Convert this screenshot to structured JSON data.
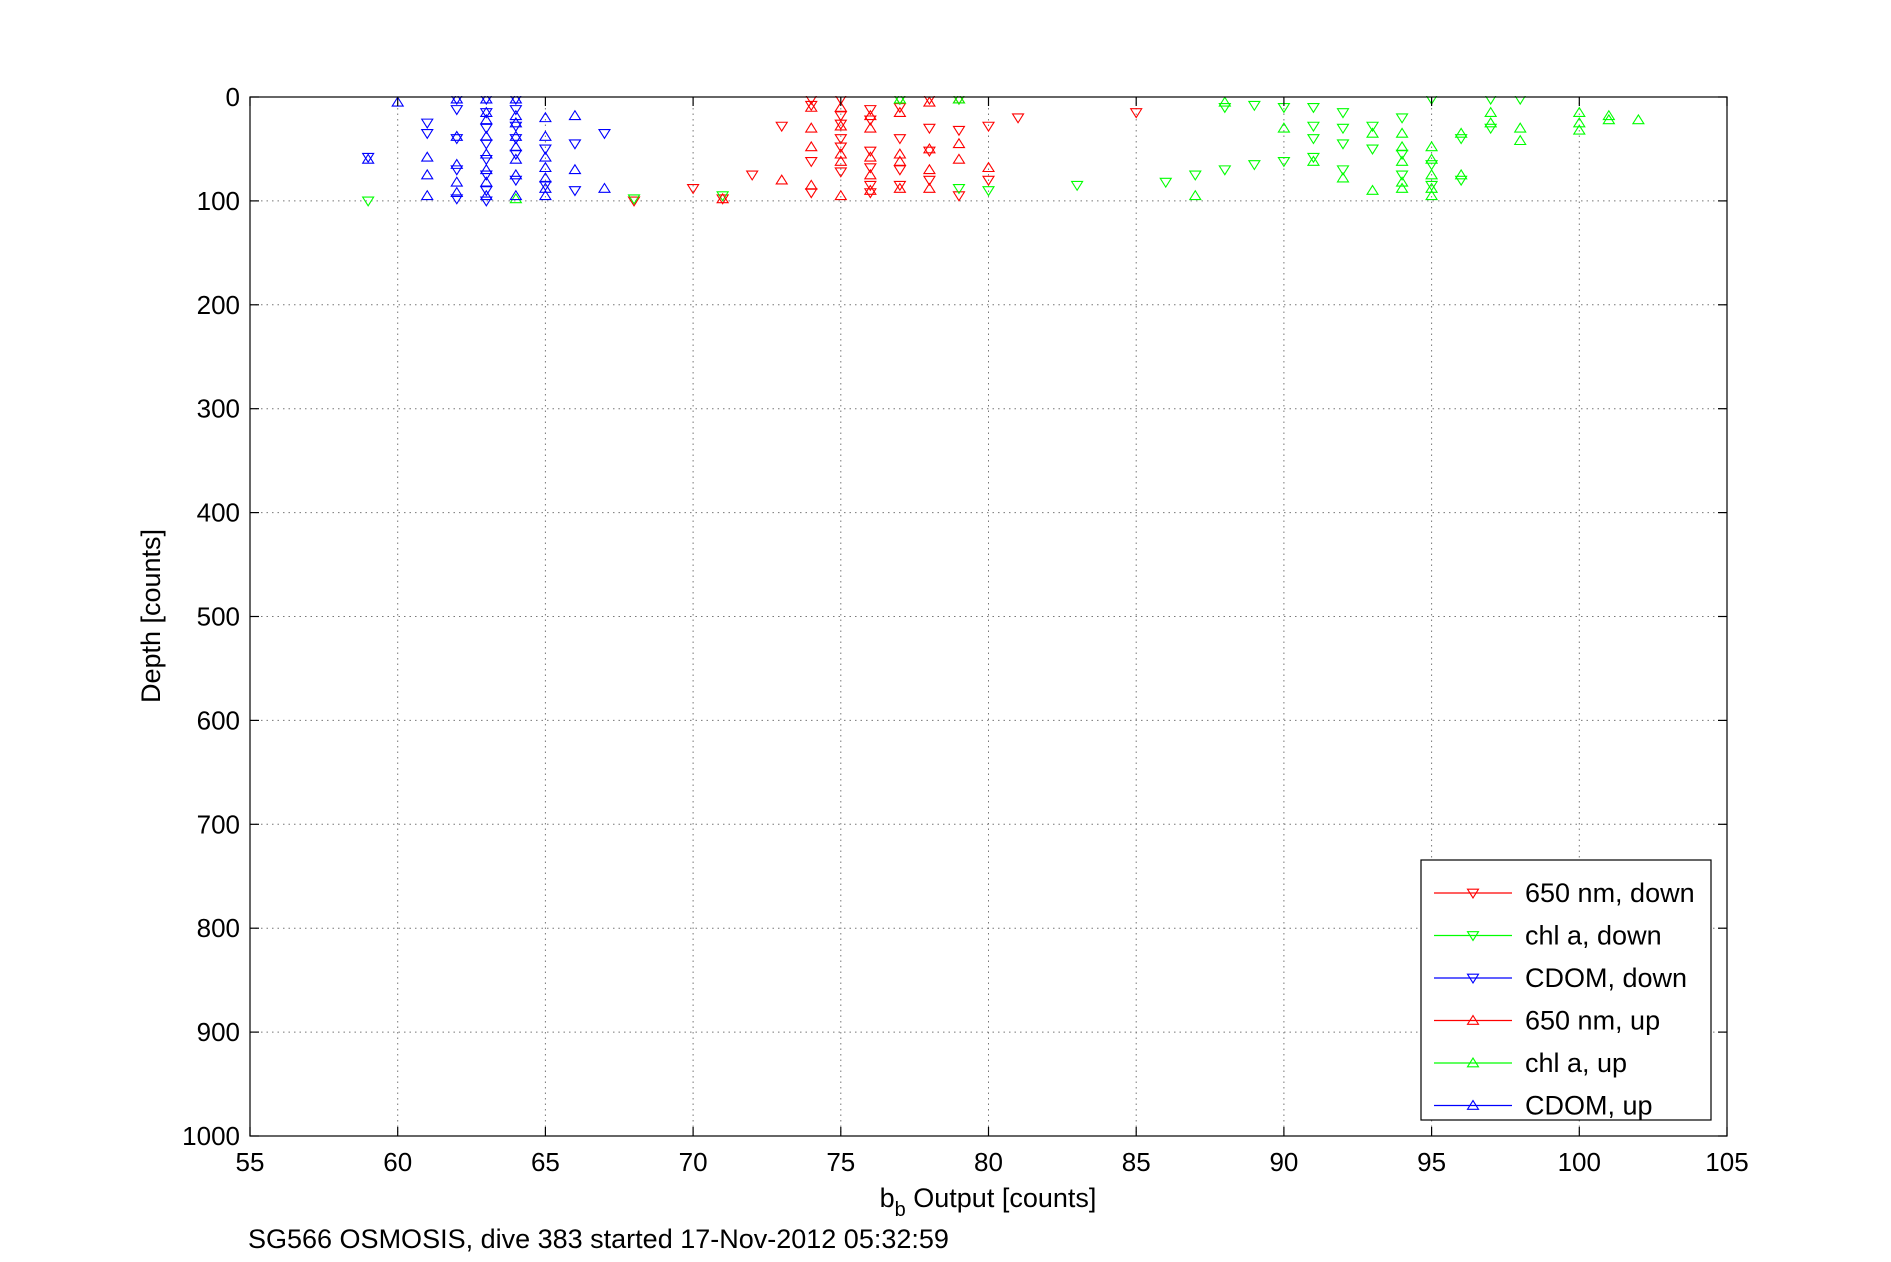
{
  "figure_caption": "SG566 OSMOSIS, dive 383 started 17-Nov-2012 05:32:59",
  "chart_data": {
    "type": "scatter",
    "title": "",
    "xlabel_main": "b",
    "xlabel_sub": "b",
    "xlabel_rest": " Output [counts]",
    "ylabel": "Depth [counts]",
    "xlim": [
      55,
      105
    ],
    "ylim": [
      0,
      1000
    ],
    "y_reversed": true,
    "grid": true,
    "legend_position": "bottom-right",
    "x_ticks": [
      "55",
      "60",
      "65",
      "70",
      "75",
      "80",
      "85",
      "90",
      "95",
      "100",
      "105"
    ],
    "y_ticks": [
      "0",
      "100",
      "200",
      "300",
      "400",
      "500",
      "600",
      "700",
      "800",
      "900",
      "1000"
    ],
    "series": [
      {
        "name": "650 nm, down",
        "color": "#ff0000",
        "marker": "triangle-down",
        "points": [
          [
            68,
            100
          ],
          [
            70,
            88
          ],
          [
            71,
            98
          ],
          [
            72,
            75
          ],
          [
            73,
            28
          ],
          [
            74,
            2
          ],
          [
            74,
            8
          ],
          [
            74,
            62
          ],
          [
            74,
            92
          ],
          [
            75,
            2
          ],
          [
            75,
            18
          ],
          [
            75,
            26
          ],
          [
            75,
            40
          ],
          [
            75,
            48
          ],
          [
            75,
            72
          ],
          [
            76,
            12
          ],
          [
            76,
            22
          ],
          [
            76,
            52
          ],
          [
            76,
            68
          ],
          [
            76,
            85
          ],
          [
            76,
            92
          ],
          [
            77,
            2
          ],
          [
            77,
            10
          ],
          [
            77,
            40
          ],
          [
            77,
            70
          ],
          [
            77,
            85
          ],
          [
            78,
            2
          ],
          [
            78,
            30
          ],
          [
            78,
            52
          ],
          [
            78,
            80
          ],
          [
            79,
            2
          ],
          [
            79,
            32
          ],
          [
            79,
            95
          ],
          [
            80,
            28
          ],
          [
            80,
            80
          ],
          [
            81,
            20
          ],
          [
            85,
            15
          ]
        ]
      },
      {
        "name": "chl a, down",
        "color": "#00ff00",
        "marker": "triangle-down",
        "points": [
          [
            59,
            100
          ],
          [
            68,
            98
          ],
          [
            71,
            95
          ],
          [
            77,
            2
          ],
          [
            79,
            2
          ],
          [
            79,
            88
          ],
          [
            80,
            90
          ],
          [
            83,
            85
          ],
          [
            86,
            82
          ],
          [
            87,
            75
          ],
          [
            88,
            10
          ],
          [
            88,
            70
          ],
          [
            89,
            8
          ],
          [
            89,
            65
          ],
          [
            90,
            10
          ],
          [
            90,
            62
          ],
          [
            91,
            10
          ],
          [
            91,
            28
          ],
          [
            91,
            40
          ],
          [
            91,
            58
          ],
          [
            92,
            15
          ],
          [
            92,
            30
          ],
          [
            92,
            45
          ],
          [
            92,
            70
          ],
          [
            93,
            28
          ],
          [
            93,
            50
          ],
          [
            94,
            20
          ],
          [
            94,
            55
          ],
          [
            94,
            75
          ],
          [
            95,
            2
          ],
          [
            95,
            65
          ],
          [
            95,
            85
          ],
          [
            96,
            40
          ],
          [
            96,
            80
          ],
          [
            97,
            2
          ],
          [
            97,
            30
          ],
          [
            98,
            2
          ]
        ]
      },
      {
        "name": "CDOM, down",
        "color": "#0000ff",
        "marker": "triangle-down",
        "points": [
          [
            59,
            58
          ],
          [
            61,
            25
          ],
          [
            61,
            35
          ],
          [
            62,
            2
          ],
          [
            62,
            12
          ],
          [
            62,
            40
          ],
          [
            62,
            70
          ],
          [
            62,
            98
          ],
          [
            63,
            2
          ],
          [
            63,
            15
          ],
          [
            63,
            30
          ],
          [
            63,
            45
          ],
          [
            63,
            60
          ],
          [
            63,
            75
          ],
          [
            63,
            90
          ],
          [
            63,
            100
          ],
          [
            64,
            2
          ],
          [
            64,
            12
          ],
          [
            64,
            28
          ],
          [
            64,
            40
          ],
          [
            64,
            55
          ],
          [
            64,
            80
          ],
          [
            65,
            50
          ],
          [
            65,
            85
          ],
          [
            66,
            45
          ],
          [
            66,
            90
          ],
          [
            67,
            35
          ]
        ]
      },
      {
        "name": "650 nm, up",
        "color": "#ff0000",
        "marker": "triangle-up",
        "points": [
          [
            71,
            98
          ],
          [
            73,
            80
          ],
          [
            74,
            10
          ],
          [
            74,
            30
          ],
          [
            74,
            48
          ],
          [
            74,
            85
          ],
          [
            75,
            10
          ],
          [
            75,
            28
          ],
          [
            75,
            55
          ],
          [
            75,
            62
          ],
          [
            75,
            95
          ],
          [
            76,
            18
          ],
          [
            76,
            30
          ],
          [
            76,
            58
          ],
          [
            76,
            75
          ],
          [
            76,
            90
          ],
          [
            77,
            15
          ],
          [
            77,
            55
          ],
          [
            77,
            62
          ],
          [
            77,
            88
          ],
          [
            78,
            5
          ],
          [
            78,
            50
          ],
          [
            78,
            70
          ],
          [
            78,
            88
          ],
          [
            79,
            2
          ],
          [
            79,
            45
          ],
          [
            79,
            60
          ],
          [
            80,
            68
          ]
        ]
      },
      {
        "name": "chl a, up",
        "color": "#00ff00",
        "marker": "triangle-up",
        "points": [
          [
            64,
            98
          ],
          [
            77,
            2
          ],
          [
            79,
            2
          ],
          [
            87,
            95
          ],
          [
            88,
            5
          ],
          [
            90,
            30
          ],
          [
            91,
            62
          ],
          [
            92,
            78
          ],
          [
            93,
            35
          ],
          [
            93,
            90
          ],
          [
            94,
            35
          ],
          [
            94,
            48
          ],
          [
            94,
            62
          ],
          [
            94,
            82
          ],
          [
            94,
            88
          ],
          [
            95,
            48
          ],
          [
            95,
            60
          ],
          [
            95,
            75
          ],
          [
            95,
            88
          ],
          [
            95,
            95
          ],
          [
            96,
            35
          ],
          [
            96,
            75
          ],
          [
            97,
            15
          ],
          [
            97,
            25
          ],
          [
            98,
            30
          ],
          [
            98,
            42
          ],
          [
            100,
            15
          ],
          [
            100,
            25
          ],
          [
            100,
            32
          ],
          [
            101,
            18
          ],
          [
            101,
            22
          ],
          [
            102,
            22
          ]
        ]
      },
      {
        "name": "CDOM, up",
        "color": "#0000ff",
        "marker": "triangle-up",
        "points": [
          [
            59,
            60
          ],
          [
            60,
            5
          ],
          [
            61,
            58
          ],
          [
            61,
            75
          ],
          [
            61,
            95
          ],
          [
            62,
            2
          ],
          [
            62,
            38
          ],
          [
            62,
            65
          ],
          [
            62,
            82
          ],
          [
            62,
            92
          ],
          [
            63,
            2
          ],
          [
            63,
            15
          ],
          [
            63,
            22
          ],
          [
            63,
            38
          ],
          [
            63,
            55
          ],
          [
            63,
            70
          ],
          [
            63,
            82
          ],
          [
            63,
            95
          ],
          [
            64,
            2
          ],
          [
            64,
            18
          ],
          [
            64,
            25
          ],
          [
            64,
            38
          ],
          [
            64,
            48
          ],
          [
            64,
            60
          ],
          [
            64,
            75
          ],
          [
            64,
            95
          ],
          [
            65,
            20
          ],
          [
            65,
            38
          ],
          [
            65,
            58
          ],
          [
            65,
            68
          ],
          [
            65,
            78
          ],
          [
            65,
            88
          ],
          [
            65,
            95
          ],
          [
            66,
            18
          ],
          [
            66,
            70
          ],
          [
            67,
            88
          ]
        ]
      }
    ]
  }
}
